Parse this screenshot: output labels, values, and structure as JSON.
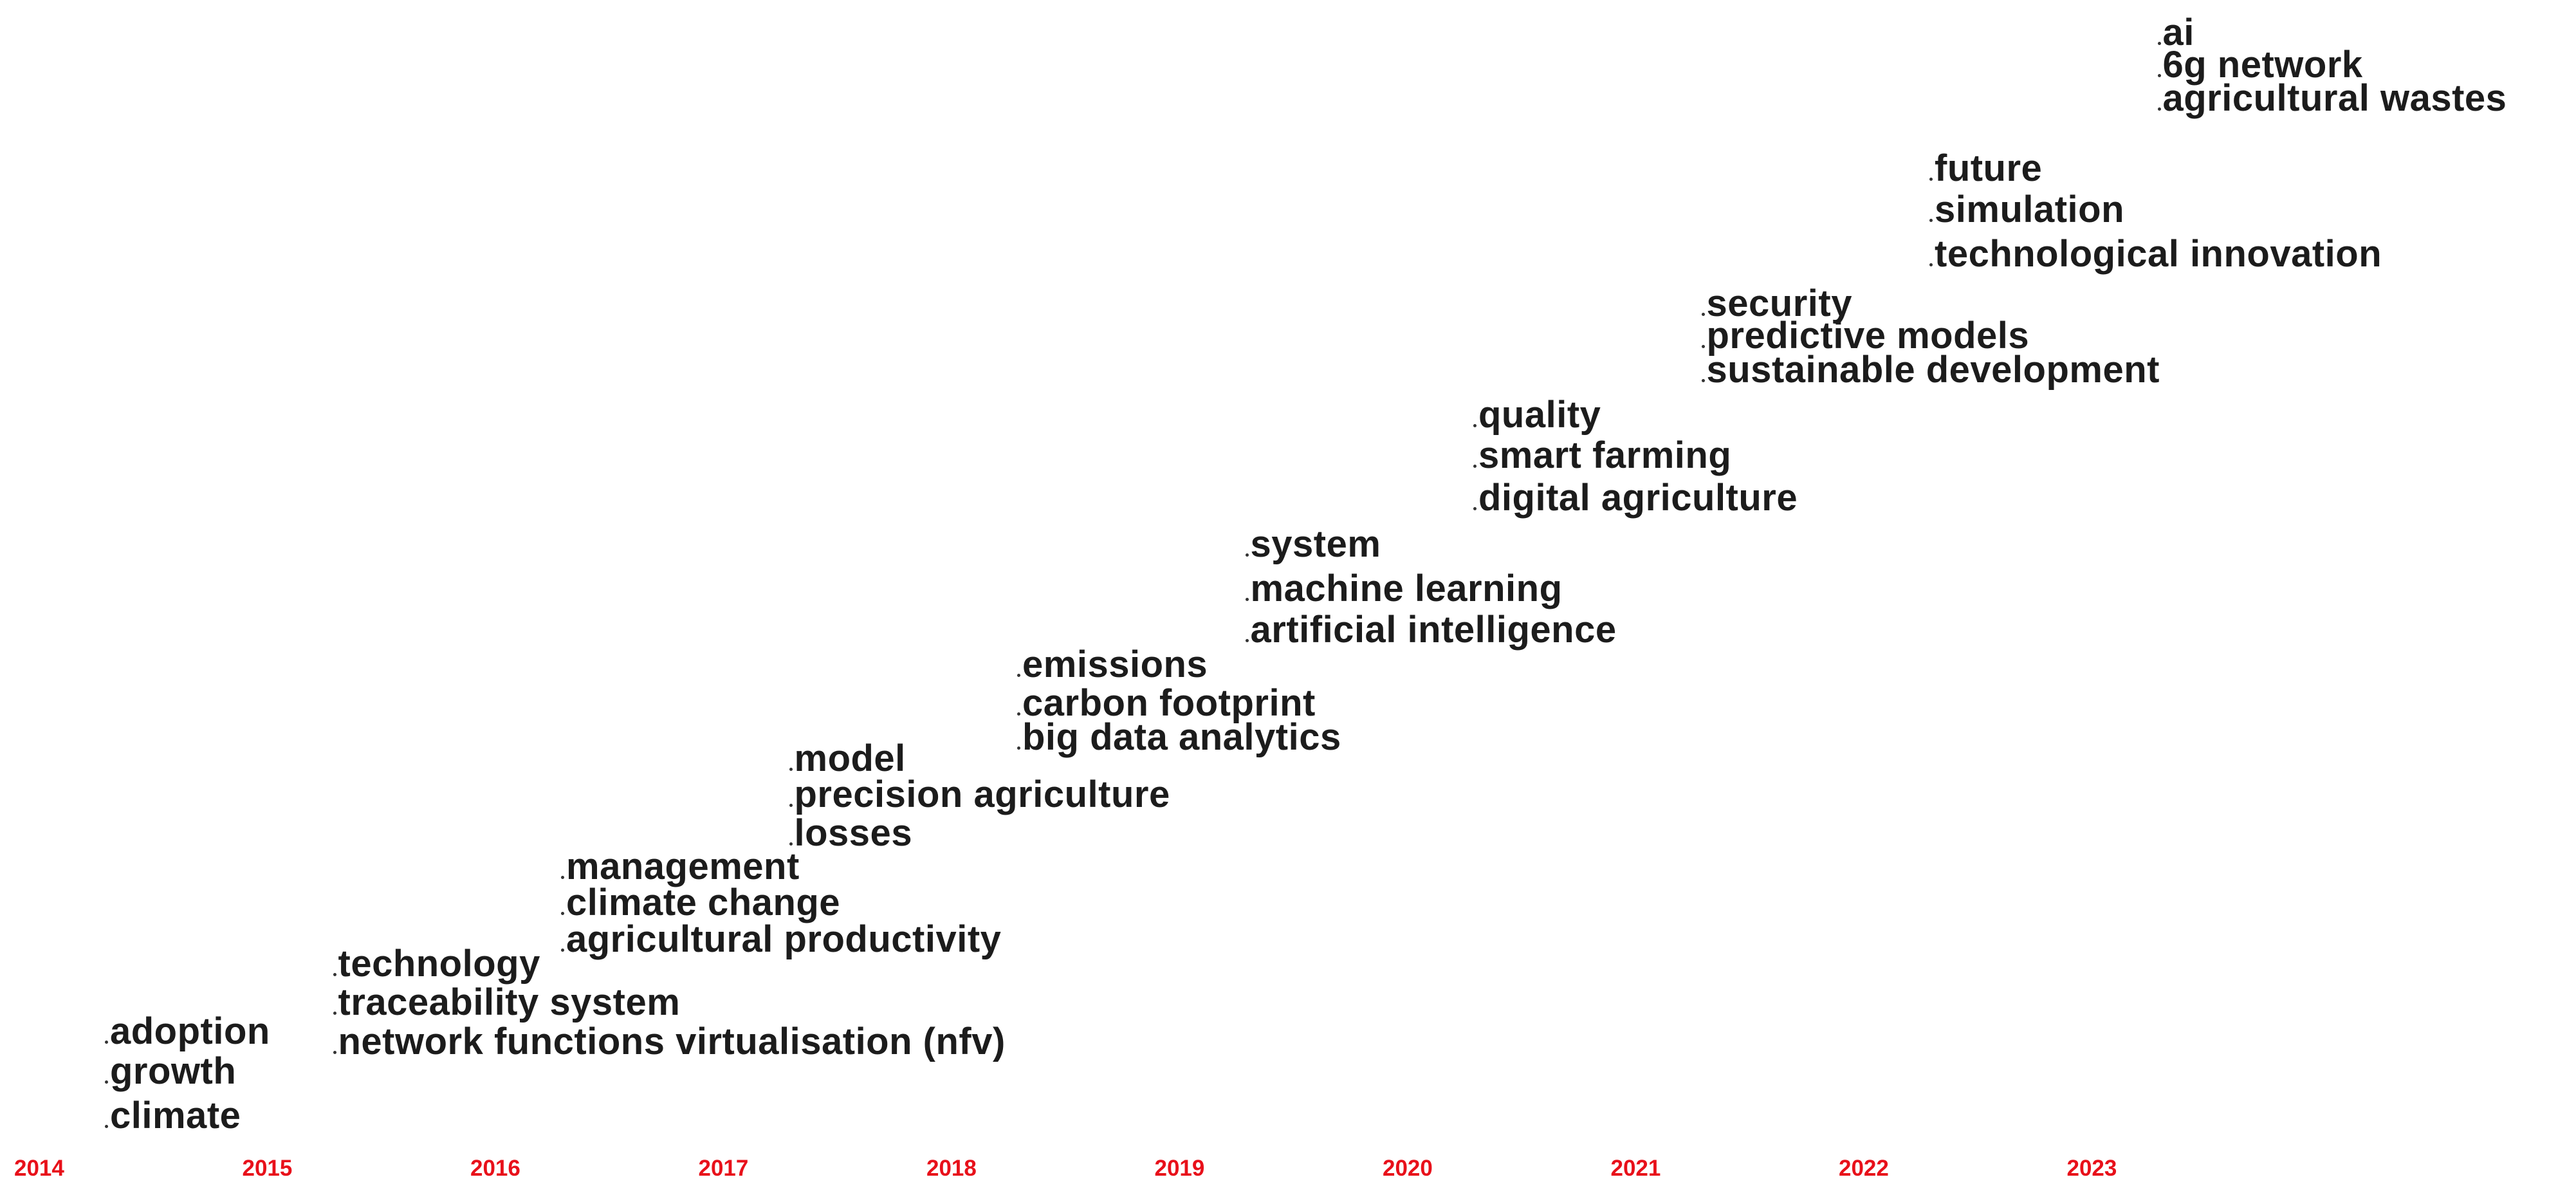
{
  "chart_data": {
    "type": "scatter",
    "title": "",
    "xlabel": "",
    "ylabel": "",
    "x_ticks": [
      "2014",
      "2015",
      "2016",
      "2017",
      "2018",
      "2019",
      "2020",
      "2021",
      "2022",
      "2023"
    ],
    "tick_color": "#e8101a",
    "text_color": "#1c1c1c",
    "grid": false,
    "groups": [
      {
        "year": 2014,
        "terms": [
          "adoption",
          "growth",
          "climate"
        ]
      },
      {
        "year": 2015,
        "terms": [
          "technology",
          "traceability system",
          "network functions virtualisation (nfv)"
        ]
      },
      {
        "year": 2016,
        "terms": [
          "management",
          "climate change",
          "agricultural productivity"
        ]
      },
      {
        "year": 2017,
        "terms": [
          "model",
          "precision agriculture",
          "losses"
        ]
      },
      {
        "year": 2018,
        "terms": [
          "emissions",
          "carbon footprint",
          "big data analytics"
        ]
      },
      {
        "year": 2019,
        "terms": [
          "system",
          "machine learning",
          "artificial intelligence"
        ]
      },
      {
        "year": 2020,
        "terms": [
          "quality",
          "smart farming",
          "digital agriculture"
        ]
      },
      {
        "year": 2021,
        "terms": [
          "security",
          "predictive models",
          "sustainable development"
        ]
      },
      {
        "year": 2022,
        "terms": [
          "future",
          "simulation",
          "technological innovation"
        ]
      },
      {
        "year": 2023,
        "terms": [
          "ai",
          "6g network",
          "agricultural wastes"
        ]
      }
    ]
  }
}
